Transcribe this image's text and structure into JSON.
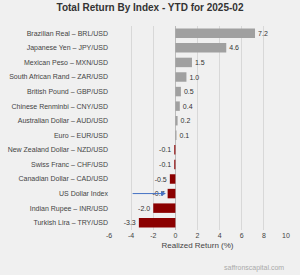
{
  "chart_data": {
    "type": "bar",
    "orientation": "horizontal",
    "title": "Total Return By Index - YTD for 2025-02",
    "xlabel": "Realized Return (%)",
    "annotations": [
      {
        "text": "saffronscapital.com"
      }
    ],
    "categories": [
      "Turkish Lira – TRY/USD",
      "Indian Rupee – INR/USD",
      "US Dollar Index",
      "Canadian Dollar – CAD/USD",
      "Swiss Franc – CHF/USD",
      "New Zealand Dollar – NZD/USD",
      "Euro – EUR/USD",
      "Australian Dollar – AUD/USD",
      "Chinese Renminbi – CNY/USD",
      "British Pound – GBP/USD",
      "South African Rand – ZAR/USD",
      "Mexican Peso – MXN/USD",
      "Japanese Yen – JPY/USD",
      "Brazilian Real – BRL/USD"
    ],
    "values": [
      -3.3,
      -2.0,
      -0.7,
      -0.5,
      -0.1,
      -0.1,
      0.1,
      0.2,
      0.4,
      0.5,
      1.0,
      1.5,
      4.6,
      7.2
    ],
    "value_labels": [
      "-3.3",
      "-2.0",
      "-0.7",
      "-0.5",
      "-0.1",
      "-0.1",
      "0.1",
      "0.2",
      "0.4",
      "0.5",
      "1.0",
      "1.5",
      "4.6",
      "7.2"
    ],
    "colors": [
      "#8b0000",
      "#8b0000",
      "#8b0000",
      "#8b0000",
      "#8b0000",
      "#8b0000",
      "#a0a0a0",
      "#a0a0a0",
      "#a0a0a0",
      "#a0a0a0",
      "#a0a0a0",
      "#a0a0a0",
      "#a0a0a0",
      "#a0a0a0"
    ],
    "data_labels": true,
    "arrow": {
      "category": "US Dollar Index",
      "x_start": -4.0,
      "x_end": -0.85,
      "color": "#4472c4"
    },
    "xlim": [
      -6,
      10
    ],
    "xticks": [
      -6,
      -4,
      -2,
      0,
      2,
      4,
      6,
      8,
      10
    ],
    "grid": true
  }
}
